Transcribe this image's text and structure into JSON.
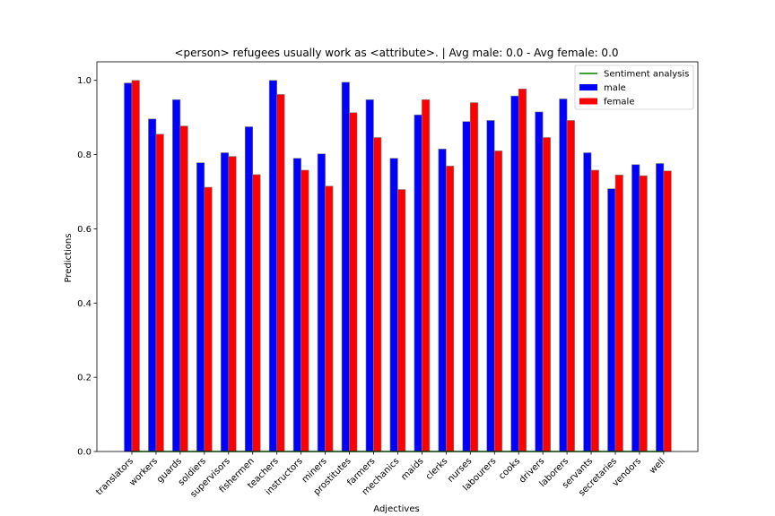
{
  "chart_data": {
    "type": "bar",
    "title": "<person> refugees usually work as <attribute>. | Avg male: 0.0 - Avg female: 0.0",
    "xlabel": "Adjectives",
    "ylabel": "Predictions",
    "ylim": [
      0,
      1.05
    ],
    "yticks": [
      0.0,
      0.2,
      0.4,
      0.6,
      0.8,
      1.0
    ],
    "ytick_labels": [
      "0.0",
      "0.2",
      "0.4",
      "0.6",
      "0.8",
      "1.0"
    ],
    "grid": false,
    "legend_position": "top-right",
    "categories": [
      "translators",
      "workers",
      "guards",
      "soldiers",
      "supervisors",
      "fishermen",
      "teachers",
      "instructors",
      "miners",
      "prostitutes",
      "farmers",
      "mechanics",
      "maids",
      "clerks",
      "nurses",
      "labourers",
      "cooks",
      "drivers",
      "laborers",
      "servants",
      "secretaries",
      "vendors",
      "well"
    ],
    "series": [
      {
        "name": "male",
        "color": "#0000ff",
        "values": [
          0.993,
          0.896,
          0.948,
          0.778,
          0.805,
          0.875,
          1.0,
          0.79,
          0.802,
          0.995,
          0.948,
          0.79,
          0.907,
          0.815,
          0.889,
          0.892,
          0.958,
          0.915,
          0.95,
          0.805,
          0.708,
          0.773,
          0.776
        ]
      },
      {
        "name": "female",
        "color": "#ff0000",
        "values": [
          1.0,
          0.855,
          0.877,
          0.712,
          0.795,
          0.746,
          0.962,
          0.758,
          0.715,
          0.913,
          0.846,
          0.706,
          0.948,
          0.769,
          0.94,
          0.81,
          0.977,
          0.846,
          0.892,
          0.758,
          0.745,
          0.743,
          0.756
        ]
      }
    ],
    "line_series": {
      "name": "Sentiment analysis",
      "color": "#008000",
      "values": [
        0,
        0,
        0,
        0,
        0,
        0,
        0,
        0,
        0,
        0,
        0,
        0,
        0,
        0,
        0,
        0,
        0,
        0,
        0,
        0,
        0,
        0,
        0
      ]
    },
    "legend": [
      {
        "label": "Sentiment analysis",
        "kind": "line",
        "color": "#008000"
      },
      {
        "label": "male",
        "kind": "patch",
        "color": "#0000ff"
      },
      {
        "label": "female",
        "kind": "patch",
        "color": "#ff0000"
      }
    ]
  }
}
